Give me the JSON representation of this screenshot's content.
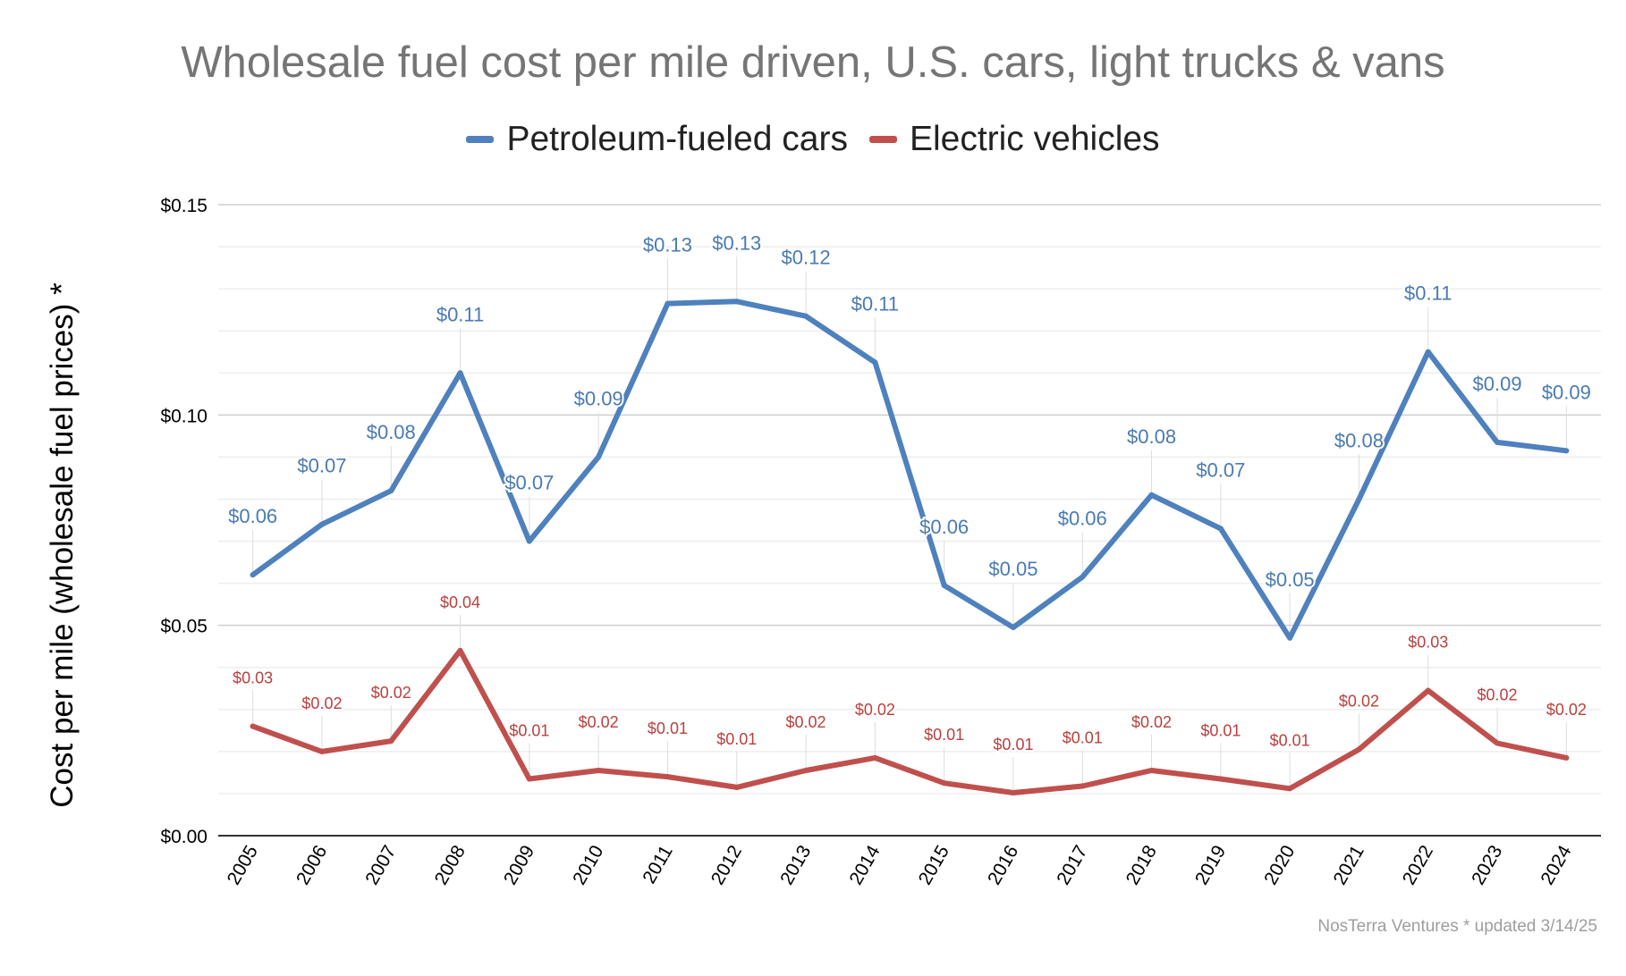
{
  "chart_data": {
    "type": "line",
    "title": "Wholesale fuel cost per mile driven, U.S. cars, light trucks & vans",
    "ylabel": "Cost per mile (wholesale fuel prices) *",
    "xlabel": "",
    "ylim": [
      0,
      0.15
    ],
    "y_ticks": [
      0,
      0.05,
      0.1,
      0.15
    ],
    "y_tick_labels": [
      "$0.00",
      "$0.05",
      "$0.10",
      "$0.15"
    ],
    "y_minor_step": 0.01,
    "grid": true,
    "legend_position": "top-center",
    "categories": [
      "2005",
      "2006",
      "2007",
      "2008",
      "2009",
      "2010",
      "2011",
      "2012",
      "2013",
      "2014",
      "2015",
      "2016",
      "2017",
      "2018",
      "2019",
      "2020",
      "2021",
      "2022",
      "2023",
      "2024"
    ],
    "series": [
      {
        "name": "Petroleum-fueled cars",
        "color": "#4e81bd",
        "values": [
          0.062,
          0.074,
          0.082,
          0.11,
          0.07,
          0.09,
          0.1265,
          0.127,
          0.1235,
          0.1125,
          0.0595,
          0.0495,
          0.0615,
          0.081,
          0.073,
          0.047,
          0.08,
          0.115,
          0.0935,
          0.0915
        ],
        "labels": [
          "$0.06",
          "$0.07",
          "$0.08",
          "$0.11",
          "$0.07",
          "$0.09",
          "$0.13",
          "$0.13",
          "$0.12",
          "$0.11",
          "$0.06",
          "$0.05",
          "$0.06",
          "$0.08",
          "$0.07",
          "$0.05",
          "$0.08",
          "$0.11",
          "$0.09",
          "$0.09"
        ]
      },
      {
        "name": "Electric vehicles",
        "color": "#c0504d",
        "values": [
          0.026,
          0.02,
          0.0225,
          0.044,
          0.0135,
          0.0155,
          0.014,
          0.0115,
          0.0155,
          0.0185,
          0.0125,
          0.0102,
          0.0118,
          0.0155,
          0.0135,
          0.0112,
          0.0205,
          0.0345,
          0.022,
          0.0185
        ],
        "labels": [
          "$0.03",
          "$0.02",
          "$0.02",
          "$0.04",
          "$0.01",
          "$0.02",
          "$0.01",
          "$0.01",
          "$0.02",
          "$0.02",
          "$0.01",
          "$0.01",
          "$0.01",
          "$0.02",
          "$0.01",
          "$0.01",
          "$0.02",
          "$0.03",
          "$0.02",
          "$0.02"
        ]
      }
    ],
    "footnote": "NosTerra Ventures * updated 3/14/25"
  }
}
